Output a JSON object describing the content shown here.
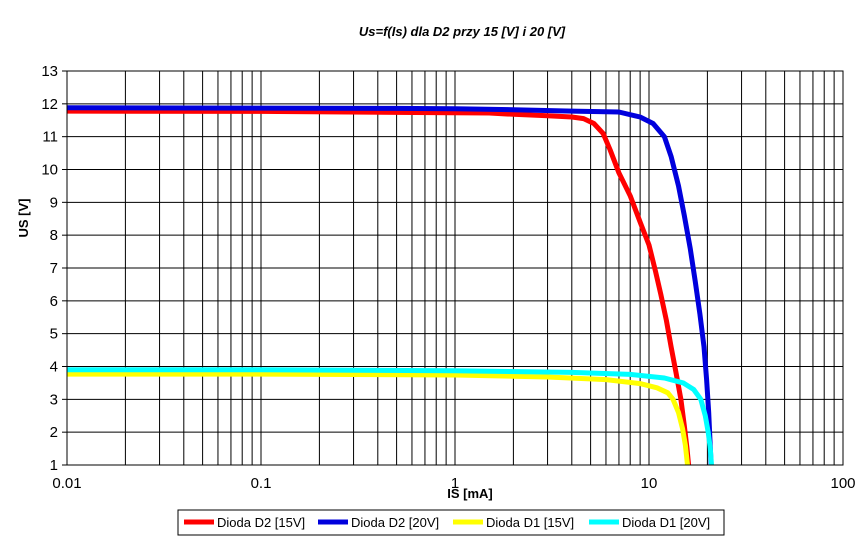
{
  "chart_data": {
    "type": "line",
    "title": "Us=f(Is) dla D2 przy 15 [V] i 20 [V]",
    "xlabel": "IS [mA]",
    "ylabel": "US [V]",
    "x_scale": "log",
    "xlim": [
      0.01,
      100
    ],
    "ylim": [
      1,
      13
    ],
    "x_tick_labels": [
      "0.01",
      "0.1",
      "1",
      "10",
      "100"
    ],
    "y_tick_labels": [
      "1",
      "2",
      "3",
      "4",
      "5",
      "6",
      "7",
      "8",
      "9",
      "10",
      "11",
      "12",
      "13"
    ],
    "grid": true,
    "legend_position": "bottom",
    "series": [
      {
        "name": "Dioda D2 [15V]",
        "color": "#ff0000",
        "points": [
          [
            0.01,
            11.78
          ],
          [
            0.1,
            11.77
          ],
          [
            0.5,
            11.74
          ],
          [
            1.5,
            11.72
          ],
          [
            2.0,
            11.68
          ],
          [
            3.0,
            11.64
          ],
          [
            4.0,
            11.6
          ],
          [
            4.6,
            11.55
          ],
          [
            5.2,
            11.4
          ],
          [
            5.8,
            11.1
          ],
          [
            6.3,
            10.6
          ],
          [
            7.0,
            9.9
          ],
          [
            8.0,
            9.2
          ],
          [
            9.0,
            8.4
          ],
          [
            10.0,
            7.7
          ],
          [
            10.8,
            6.9
          ],
          [
            11.5,
            6.2
          ],
          [
            12.3,
            5.4
          ],
          [
            13.0,
            4.6
          ],
          [
            13.8,
            3.8
          ],
          [
            14.6,
            3.0
          ],
          [
            15.2,
            2.2
          ],
          [
            15.7,
            1.5
          ],
          [
            16.0,
            1.0
          ]
        ]
      },
      {
        "name": "Dioda D2 [20V]",
        "color": "#0000dd",
        "points": [
          [
            0.01,
            11.88
          ],
          [
            0.1,
            11.87
          ],
          [
            0.5,
            11.86
          ],
          [
            1.0,
            11.85
          ],
          [
            2.0,
            11.82
          ],
          [
            4.0,
            11.78
          ],
          [
            7.0,
            11.75
          ],
          [
            9.0,
            11.6
          ],
          [
            10.5,
            11.4
          ],
          [
            12.0,
            11.0
          ],
          [
            13.0,
            10.4
          ],
          [
            14.2,
            9.5
          ],
          [
            15.2,
            8.6
          ],
          [
            16.3,
            7.6
          ],
          [
            17.3,
            6.6
          ],
          [
            18.3,
            5.6
          ],
          [
            19.2,
            4.6
          ],
          [
            19.8,
            3.6
          ],
          [
            20.3,
            2.6
          ],
          [
            20.6,
            1.8
          ],
          [
            20.9,
            1.0
          ]
        ]
      },
      {
        "name": "Dioda D1 [15V]",
        "color": "#ffff00",
        "points": [
          [
            0.01,
            3.77
          ],
          [
            0.1,
            3.77
          ],
          [
            1.0,
            3.74
          ],
          [
            3.0,
            3.68
          ],
          [
            6.0,
            3.6
          ],
          [
            9.0,
            3.48
          ],
          [
            11.0,
            3.35
          ],
          [
            12.5,
            3.2
          ],
          [
            13.3,
            3.0
          ],
          [
            14.2,
            2.6
          ],
          [
            14.9,
            2.1
          ],
          [
            15.4,
            1.6
          ],
          [
            15.8,
            1.0
          ]
        ]
      },
      {
        "name": "Dioda D1 [20V]",
        "color": "#00ffff",
        "points": [
          [
            0.01,
            3.9
          ],
          [
            0.1,
            3.9
          ],
          [
            1.0,
            3.87
          ],
          [
            4.0,
            3.82
          ],
          [
            8.0,
            3.76
          ],
          [
            12.0,
            3.65
          ],
          [
            15.0,
            3.5
          ],
          [
            17.0,
            3.3
          ],
          [
            18.5,
            3.0
          ],
          [
            19.5,
            2.5
          ],
          [
            20.2,
            2.0
          ],
          [
            20.7,
            1.5
          ],
          [
            21.0,
            1.0
          ]
        ]
      }
    ]
  }
}
